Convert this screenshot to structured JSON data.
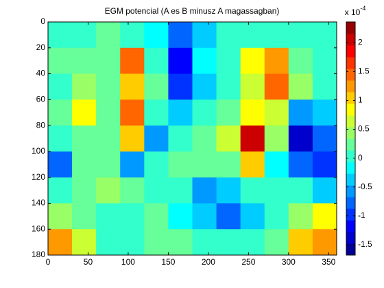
{
  "chart_data": {
    "type": "heatmap",
    "title": "EGM potencial (A es B minusz A magassagban)",
    "x": [
      0,
      30,
      60,
      90,
      120,
      150,
      180,
      210,
      240,
      270,
      300,
      330,
      360
    ],
    "y": [
      0,
      20,
      40,
      60,
      80,
      100,
      120,
      140,
      160,
      180
    ],
    "z": [
      [
        0,
        0,
        0.2,
        0,
        -0.2,
        -0.8,
        -0.3,
        0,
        0,
        0,
        0,
        0
      ],
      [
        0.3,
        0.3,
        0.2,
        1.5,
        0,
        -1.2,
        -0.2,
        0,
        0.8,
        1.2,
        0.3,
        0
      ],
      [
        0,
        0.5,
        0.3,
        1.0,
        0.2,
        -1.0,
        -0.3,
        0,
        0.6,
        1.5,
        0.5,
        0
      ],
      [
        0.2,
        0.8,
        0.3,
        1.5,
        0,
        -0.3,
        0,
        0.3,
        0.8,
        0.6,
        -0.5,
        -0.3
      ],
      [
        0,
        0.3,
        0.2,
        1.0,
        -0.5,
        0,
        0.3,
        0.6,
        2.0,
        0.5,
        -1.3,
        -0.8
      ],
      [
        -0.7,
        0.3,
        0.2,
        -0.6,
        0,
        0.2,
        0.2,
        0.3,
        1.0,
        -0.2,
        -0.8,
        -1.0
      ],
      [
        0,
        0.3,
        0.5,
        0.2,
        0.1,
        0,
        -0.5,
        -0.3,
        0,
        0,
        0,
        -0.3
      ],
      [
        0.5,
        0.3,
        0,
        0,
        0.2,
        -0.2,
        -0.3,
        -0.8,
        -0.3,
        0,
        0.5,
        0.8
      ],
      [
        1.2,
        0.6,
        0,
        0,
        0.2,
        0.2,
        0,
        0,
        0,
        0.3,
        1.0,
        1.3
      ]
    ],
    "xlim": [
      0,
      360
    ],
    "xticks": [
      0,
      50,
      100,
      150,
      200,
      250,
      300,
      350
    ],
    "ylim": [
      0,
      180
    ],
    "yticks": [
      0,
      20,
      40,
      60,
      80,
      100,
      120,
      140,
      160,
      180
    ],
    "y_reversed": true,
    "colormap": "jet",
    "clim": [
      -1.68,
      2.36
    ],
    "colorbar_ticks": [
      -1.5,
      -1,
      -0.5,
      0,
      0.5,
      1,
      1.5,
      2
    ],
    "colorbar_label": {
      "base": "x 10",
      "exponent": "-4"
    }
  }
}
